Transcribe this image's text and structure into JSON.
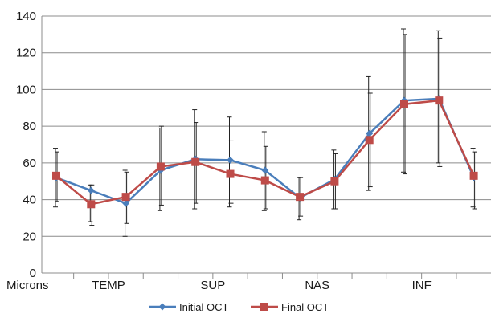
{
  "chart_data": {
    "type": "line",
    "xlabel": "Microns",
    "ylabel": "",
    "ylim": [
      0,
      140
    ],
    "yticks": [
      0,
      20,
      40,
      60,
      80,
      100,
      120,
      140
    ],
    "grid": "horizontal",
    "legend": "bottom",
    "category_labels": [
      {
        "label": "TEMP",
        "at": 1.5
      },
      {
        "label": "SUP",
        "at": 4.5
      },
      {
        "label": "NAS",
        "at": 7.5
      },
      {
        "label": "INF",
        "at": 10.5
      }
    ],
    "x": [
      0,
      1,
      2,
      3,
      4,
      5,
      6,
      7,
      8,
      9,
      10,
      11,
      12
    ],
    "series": [
      {
        "name": "Initial OCT",
        "color": "#4a7ebb",
        "marker": "diamond",
        "values": [
          52,
          45,
          38,
          56,
          62,
          61.5,
          56,
          41,
          51,
          76,
          94,
          95,
          52
        ],
        "error_low": [
          36,
          28,
          20,
          34,
          35,
          36,
          34,
          29,
          35,
          45,
          55,
          60,
          36
        ],
        "error_high": [
          68,
          48,
          56,
          79,
          89,
          85,
          77,
          52,
          67,
          107,
          133,
          132,
          68
        ]
      },
      {
        "name": "Final OCT",
        "color": "#be4b48",
        "marker": "square",
        "values": [
          53,
          37.5,
          41.5,
          58,
          60.5,
          54,
          50.5,
          41.5,
          50,
          72.5,
          92,
          94,
          53
        ],
        "error_low": [
          39,
          26,
          27,
          37,
          38,
          38,
          35,
          31,
          35,
          47,
          54,
          58,
          35
        ],
        "error_high": [
          66,
          48,
          55,
          80,
          82,
          72,
          69,
          52,
          65,
          98,
          130,
          128,
          66
        ]
      }
    ]
  }
}
